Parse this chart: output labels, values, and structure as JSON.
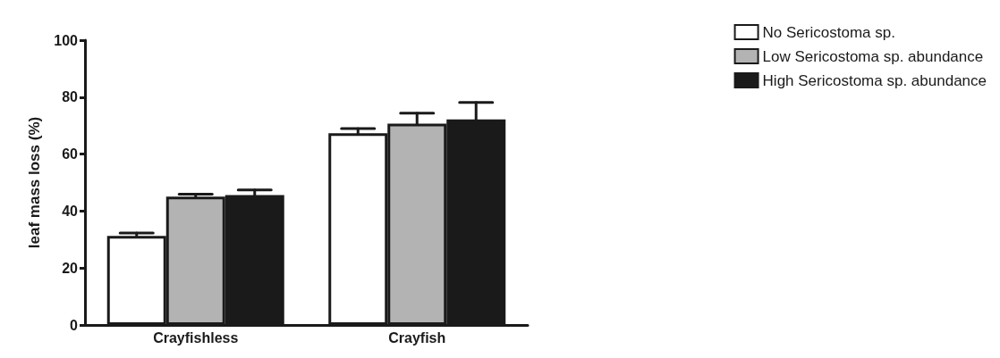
{
  "chart_data": {
    "type": "bar",
    "ylabel": "leaf mass loss (%)",
    "categories": [
      "Crayfishless",
      "Crayfish"
    ],
    "series": [
      {
        "name": "No Sericostoma sp.",
        "color": "#ffffff",
        "values": [
          31.3,
          67.3
        ],
        "errors": [
          [
            31.3,
            32.3
          ],
          [
            67.3,
            69.0
          ]
        ]
      },
      {
        "name": "Low Sericostoma sp. abundance",
        "color": "#b3b3b3",
        "values": [
          45.1,
          70.7
        ],
        "errors": [
          [
            45.1,
            45.9
          ],
          [
            70.7,
            74.4
          ]
        ]
      },
      {
        "name": "High Sericostoma sp. abundance",
        "color": "#1a1a1a",
        "values": [
          45.6,
          72.2
        ],
        "errors": [
          [
            45.6,
            47.4
          ],
          [
            72.2,
            78.1
          ]
        ]
      }
    ],
    "ylim": [
      0,
      100
    ],
    "yticks": [
      0,
      20,
      40,
      60,
      80,
      100
    ],
    "grid": false,
    "legend": "top right"
  }
}
